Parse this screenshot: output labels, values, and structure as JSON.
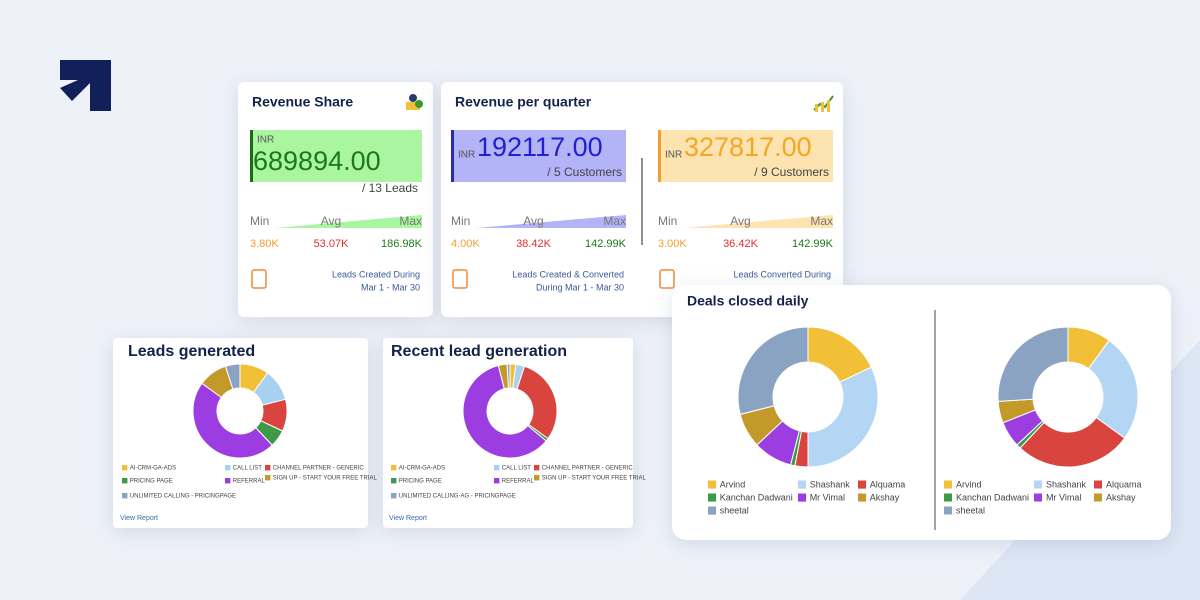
{
  "revenue_share": {
    "title": "Revenue Share",
    "currency": "INR",
    "amount": "689894.00",
    "count": "/ 13 Leads",
    "min_label": "Min",
    "avg_label": "Avg",
    "max_label": "Max",
    "min": "3.80K",
    "avg": "53.07K",
    "max": "186.98K",
    "note": "Leads Created During",
    "period": "Mar 1 - Mar 30"
  },
  "revenue_per_quarter": {
    "title": "Revenue per quarter",
    "panels": [
      {
        "currency": "INR",
        "amount": "192117.00",
        "count": "/ 5 Customers",
        "min_label": "Min",
        "avg_label": "Avg",
        "max_label": "Max",
        "min": "4.00K",
        "avg": "38.42K",
        "max": "142.99K",
        "note": "Leads Created & Converted",
        "period": "During Mar 1 - Mar 30"
      },
      {
        "currency": "INR",
        "amount": "327817.00",
        "count": "/ 9 Customers",
        "min_label": "Min",
        "avg_label": "Avg",
        "max_label": "Max",
        "min": "3.00K",
        "avg": "36.42K",
        "max": "142.99K",
        "note": "Leads Converted During"
      }
    ]
  },
  "leads_generated": {
    "title": "Leads generated",
    "legend": [
      "AI-CRM-GA-ADS",
      "CALL LIST",
      "CHANNEL PARTNER - GENERIC",
      "PRICING PAGE",
      "REFERRAL",
      "SIGN UP - START YOUR FREE TRIAL",
      "UNLIMITED CALLING - PRICINGPAGE"
    ],
    "colors": [
      "#f2c036",
      "#a8d0f0",
      "#d9443f",
      "#3f9a48",
      "#9b3de0",
      "#c39a2a",
      "#8aa3c2"
    ],
    "values": [
      10,
      11,
      11,
      6,
      47,
      10,
      5
    ],
    "link": "View Report"
  },
  "recent_lead_generation": {
    "title": "Recent lead generation",
    "legend": [
      "AI-CRM-GA-ADS",
      "CALL LIST",
      "CHANNEL PARTNER - GENERIC",
      "PRICING PAGE",
      "REFERRAL",
      "SIGN UP - START YOUR FREE TRIAL",
      "UNLIMITED CALLING-AG - PRICINGPAGE"
    ],
    "colors": [
      "#f2c036",
      "#a8d0f0",
      "#d9443f",
      "#3f9a48",
      "#9b3de0",
      "#c39a2a",
      "#8aa3c2"
    ],
    "values": [
      2,
      3,
      30,
      1,
      60,
      3,
      1
    ],
    "link": "View Report"
  },
  "deals_closed_daily": {
    "title": "Deals closed daily",
    "legend": [
      "Arvind",
      "Shashank",
      "Alquama",
      "Kanchan Dadwani",
      "Mr Vimal",
      "Akshay",
      "sheetal"
    ],
    "colors": [
      "#f2c036",
      "#b3d6f5",
      "#d9443f",
      "#3f9a48",
      "#9b3de0",
      "#c39a2a",
      "#8aa3c2"
    ],
    "charts": [
      {
        "values": [
          18,
          32,
          3,
          1,
          9,
          8,
          29
        ]
      },
      {
        "values": [
          10,
          25,
          27,
          1,
          6,
          5,
          26
        ]
      }
    ]
  }
}
